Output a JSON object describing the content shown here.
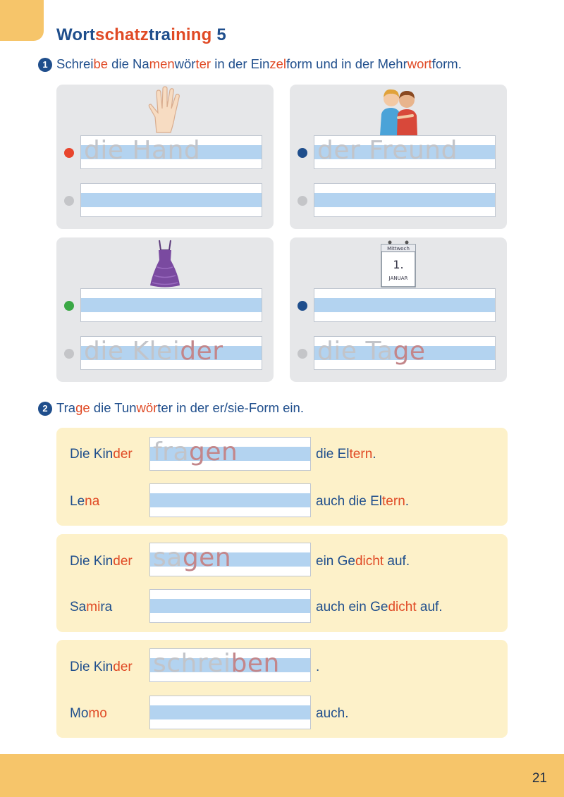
{
  "title": {
    "a": "Wort",
    "b": "schatz",
    "c": "tra",
    "d": "ining",
    "e": " 5"
  },
  "task1": {
    "number": "1",
    "parts": [
      "Schrei",
      "be",
      " die Na",
      "men",
      "wör",
      "ter",
      " in der Ein",
      "zel",
      "form und in der Mehr",
      "wort",
      "form."
    ]
  },
  "cards": [
    {
      "icon": "hand-icon",
      "dot1": "#e8452d",
      "dot2": "#c4c5c8",
      "line1_trace": "die Hand",
      "line1_end": "",
      "line2_trace": "",
      "line2_end": ""
    },
    {
      "icon": "friends-icon",
      "dot1": "#1f4e8c",
      "dot2": "#c4c5c8",
      "line1_trace": "der Freund",
      "line1_end": "",
      "line2_trace": "",
      "line2_end": ""
    },
    {
      "icon": "dress-icon",
      "dot1": "#3aa845",
      "dot2": "#c4c5c8",
      "line1_trace": "",
      "line1_end": "",
      "line2_trace": "die Klei",
      "line2_end": "der"
    },
    {
      "icon": "calendar-icon",
      "dot1": "#1f4e8c",
      "dot2": "#c4c5c8",
      "line1_trace": "",
      "line1_end": "",
      "line2_trace": "die Ta",
      "line2_end": "ge"
    }
  ],
  "calendar": {
    "weekday": "Mittwoch",
    "day": "1.",
    "month": "JANUAR"
  },
  "task2": {
    "number": "2",
    "parts": [
      "Tra",
      "ge",
      " die Tun",
      "wör",
      "ter in der er/sie-Form ein."
    ]
  },
  "panels": [
    {
      "row1": {
        "s1": "Die Kin",
        "s2": "der",
        "trace": "fra",
        "trace_end": "gen",
        "after1": "die El",
        "after2": "tern",
        "after3": "."
      },
      "row2": {
        "s1": "Le",
        "s2": "na",
        "trace": "",
        "trace_end": "",
        "after1": "auch die El",
        "after2": "tern",
        "after3": "."
      }
    },
    {
      "row1": {
        "s1": "Die Kin",
        "s2": "der",
        "trace": "sa",
        "trace_end": "gen",
        "after1": "ein Ge",
        "after2": "dicht",
        "after3": " auf."
      },
      "row2": {
        "s1": "Sa",
        "s2": "mi",
        "s3": "ra",
        "trace": "",
        "trace_end": "",
        "after1": "auch ein Ge",
        "after2": "dicht",
        "after3": " auf."
      }
    },
    {
      "row1": {
        "s1": "Die Kin",
        "s2": "der",
        "trace": "schrei",
        "trace_end": "ben",
        "after1": ".",
        "after2": "",
        "after3": ""
      },
      "row2": {
        "s1": "Mo",
        "s2": "mo",
        "trace": "",
        "trace_end": "",
        "after1": "auch.",
        "after2": "",
        "after3": ""
      }
    }
  ],
  "page_number": "21"
}
